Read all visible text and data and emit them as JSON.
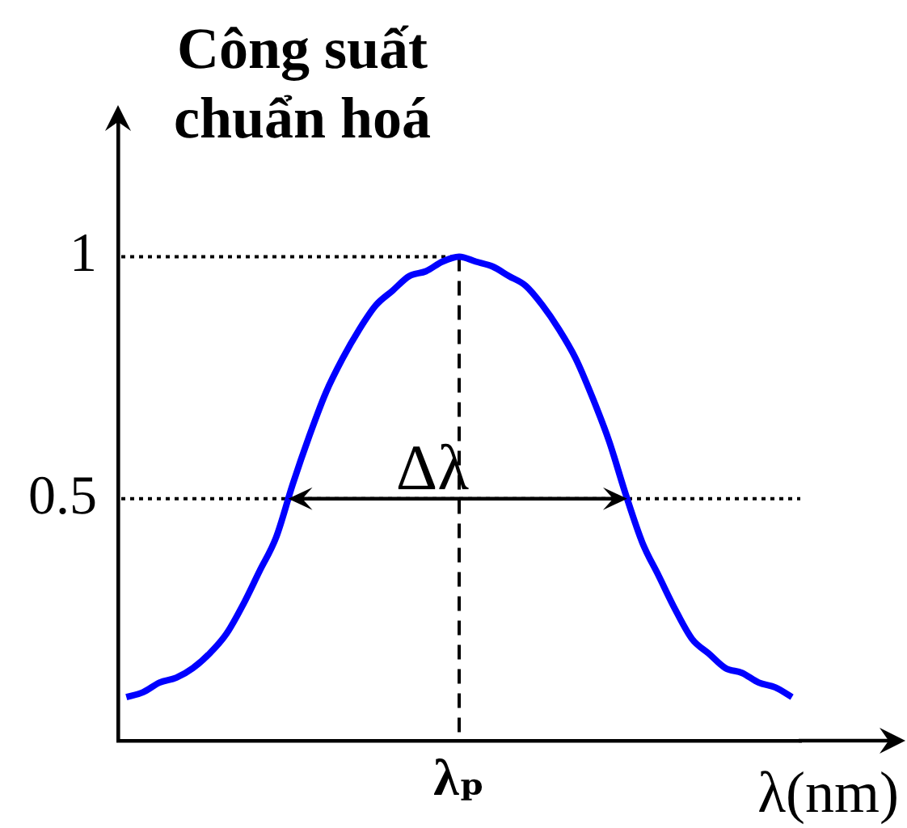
{
  "chart_data": {
    "type": "line",
    "ylabel": "Công suất chuẩn hoá",
    "xlabel": "λ(nm)",
    "categories": [
      null,
      null,
      null,
      null,
      null,
      null,
      null,
      null,
      null,
      null,
      null,
      null,
      null,
      null,
      null,
      null,
      null,
      null,
      null,
      null,
      "λₚ",
      null,
      null,
      null,
      null,
      null,
      null,
      null,
      null,
      null,
      null,
      null,
      null,
      null,
      null,
      null,
      null,
      null,
      null,
      null,
      null
    ],
    "values": [
      0.09,
      0.1,
      0.12,
      0.13,
      0.15,
      0.18,
      0.22,
      0.28,
      0.35,
      0.42,
      0.53,
      0.63,
      0.72,
      0.79,
      0.85,
      0.9,
      0.93,
      0.96,
      0.97,
      0.99,
      1,
      0.99,
      0.98,
      0.96,
      0.94,
      0.9,
      0.85,
      0.79,
      0.71,
      0.62,
      0.51,
      0.41,
      0.34,
      0.27,
      0.21,
      0.18,
      0.15,
      0.14,
      0.12,
      0.11,
      0.09
    ],
    "color": "#0000ff",
    "ylim": [
      0,
      1.3
    ],
    "yticks": [
      0.5,
      1
    ],
    "ref_lines": [
      {
        "axis": "y",
        "value": 1,
        "line_style": "dotted"
      },
      {
        "axis": "y",
        "value": 0.5,
        "line_style": "dotted"
      },
      {
        "axis": "x",
        "value": "λₚ",
        "line_style": "dashed"
      }
    ],
    "annotations": [
      {
        "text": "Δλ",
        "x": "λₚ",
        "y": 0.5
      }
    ]
  }
}
